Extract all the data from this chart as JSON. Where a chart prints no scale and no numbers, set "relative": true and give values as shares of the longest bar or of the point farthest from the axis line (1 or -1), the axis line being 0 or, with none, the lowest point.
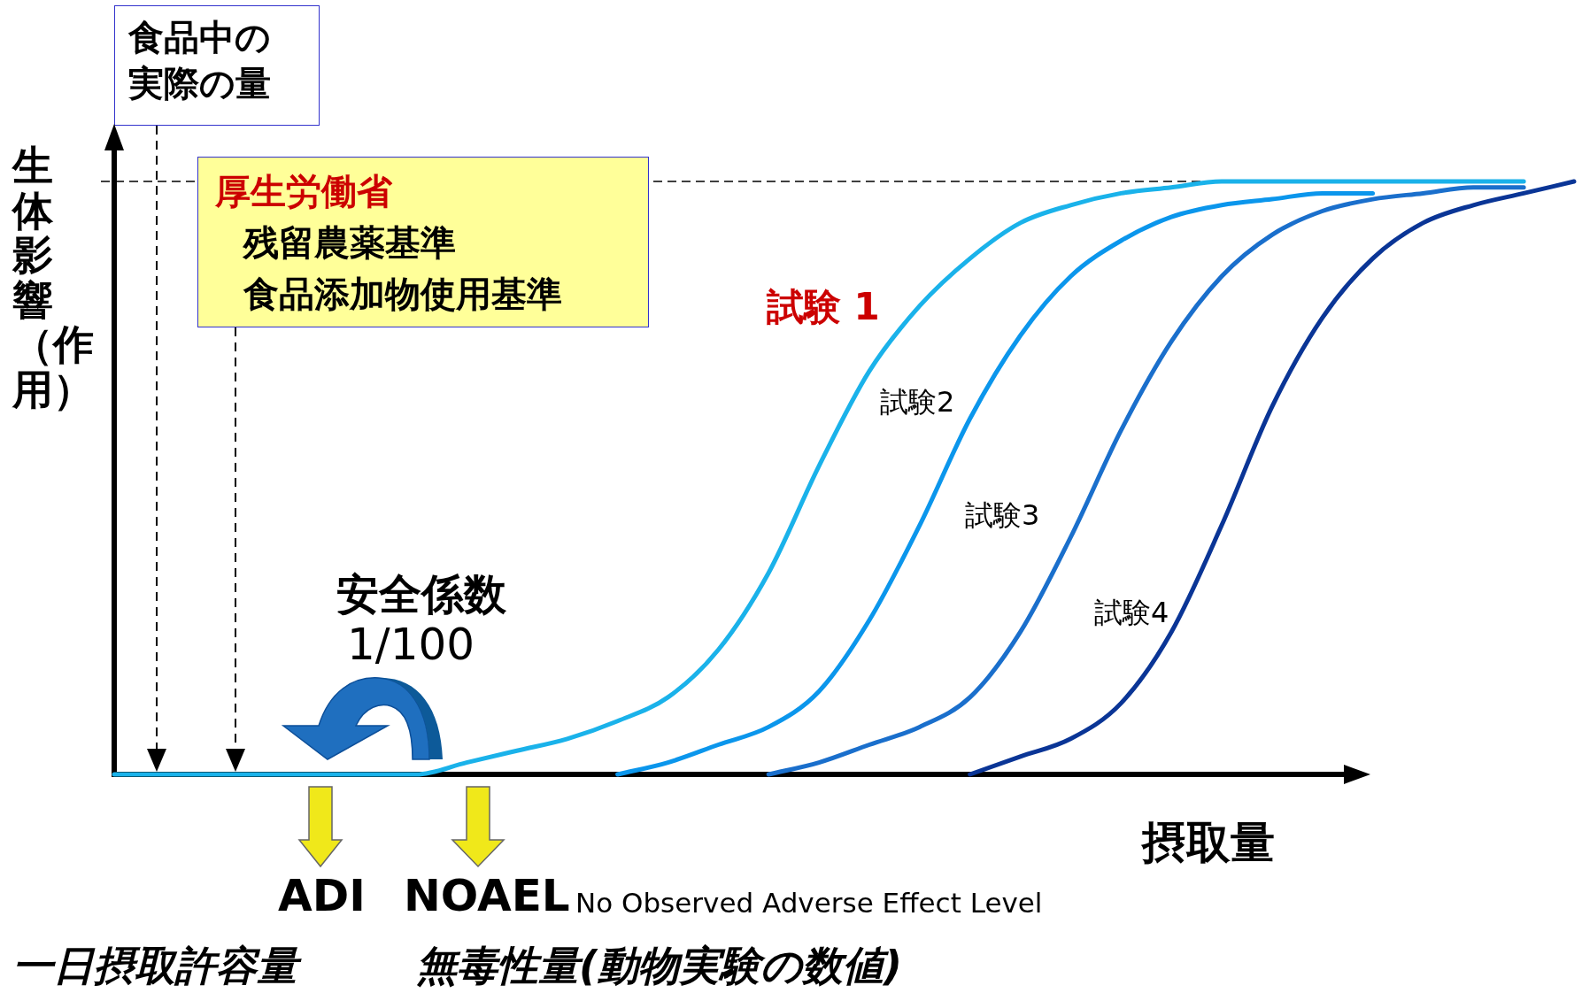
{
  "chart_data": {
    "type": "line",
    "relative": true,
    "xlabel": "摂取量",
    "ylabel": "生体影響（作用）",
    "categories": [
      null,
      null,
      null,
      null,
      null,
      null,
      null,
      null,
      null,
      null,
      null,
      null,
      null,
      null,
      null,
      null,
      null,
      null,
      null,
      null,
      null,
      null,
      null,
      null,
      null,
      null,
      null,
      null,
      null,
      null
    ],
    "series": [
      {
        "name": "試験 1",
        "color": "#1ab2ea",
        "values": [
          0,
          0,
          0,
          0,
          0,
          0,
          0,
          0.02,
          0.04,
          0.06,
          0.09,
          0.13,
          0.21,
          0.34,
          0.52,
          0.68,
          0.79,
          0.87,
          0.93,
          0.96,
          0.98,
          0.99,
          1,
          1,
          1,
          1,
          1,
          1,
          1,
          null
        ]
      },
      {
        "name": "試験2",
        "color": "#0b96ec",
        "values": [
          null,
          null,
          null,
          null,
          null,
          null,
          null,
          null,
          null,
          null,
          0,
          0.02,
          0.05,
          0.08,
          0.14,
          0.26,
          0.42,
          0.6,
          0.74,
          0.84,
          0.9,
          0.94,
          0.96,
          0.97,
          0.98,
          0.98,
          null,
          null,
          null,
          null
        ]
      },
      {
        "name": "試験3",
        "color": "#1a6fcc",
        "values": [
          null,
          null,
          null,
          null,
          null,
          null,
          null,
          null,
          null,
          null,
          null,
          null,
          null,
          0,
          0.02,
          0.05,
          0.08,
          0.13,
          0.24,
          0.4,
          0.58,
          0.73,
          0.84,
          0.91,
          0.95,
          0.97,
          0.98,
          0.99,
          0.99,
          null
        ]
      },
      {
        "name": "試験4",
        "color": "#0a3596",
        "values": [
          null,
          null,
          null,
          null,
          null,
          null,
          null,
          null,
          null,
          null,
          null,
          null,
          null,
          null,
          null,
          null,
          null,
          0,
          0.03,
          0.06,
          0.12,
          0.24,
          0.42,
          0.62,
          0.77,
          0.87,
          0.93,
          0.96,
          0.98,
          1
        ]
      }
    ],
    "ref_lines": [
      {
        "axis": "y",
        "value": 1,
        "color": "#000000",
        "line_style": "dashed"
      }
    ],
    "annotations": [
      "食品中の実際の量",
      "厚生労働省",
      "残留農薬基準",
      "食品添加物使用基準",
      "安全係数",
      "1/100",
      "ADI",
      "NOAEL",
      "No Observed Adverse Effect Level",
      "一日摂取許容量",
      "無毒性量(動物実験の数値)"
    ],
    "legend": false,
    "tick_labels": false,
    "marker": "none",
    "line_style": "solid"
  }
}
